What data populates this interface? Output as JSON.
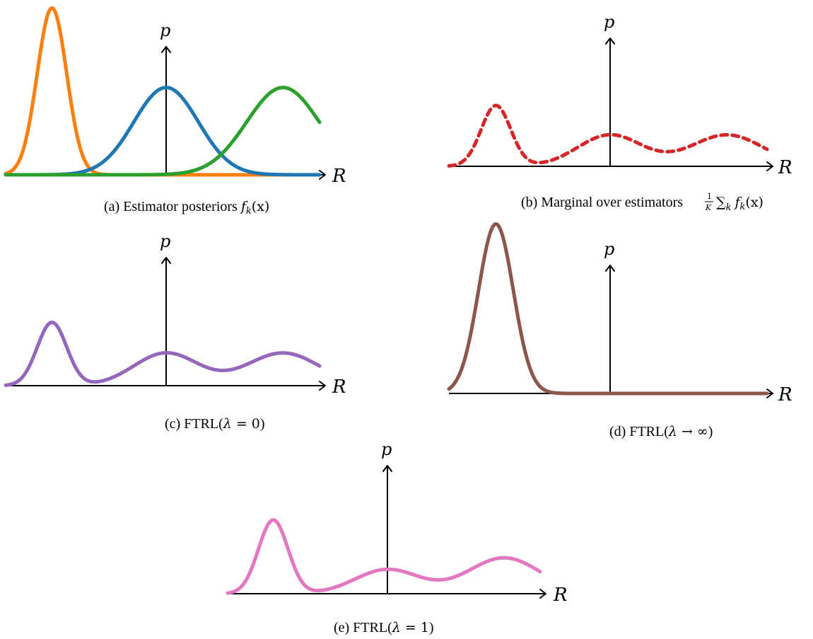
{
  "figure": {
    "panels": [
      {
        "id": "a",
        "y_label": "p",
        "x_label": "R",
        "caption": {
          "prefix": "(a) Estimator posteriors ",
          "math_f": "f",
          "math_k": "k",
          "math_arg": "(x)"
        },
        "curves": [
          {
            "name": "",
            "color": "#ff7f0e",
            "style": "solid",
            "type": "gaussian",
            "mu": -0.85,
            "sigma": 0.11,
            "peak": 1.72
          },
          {
            "name": "",
            "color": "#1f77b4",
            "style": "solid",
            "type": "gaussian",
            "mu": 0.0,
            "sigma": 0.24,
            "peak": 0.9
          },
          {
            "name": "",
            "color": "#2ca02c",
            "style": "solid",
            "type": "gaussian",
            "mu": 0.87,
            "sigma": 0.27,
            "peak": 0.9
          }
        ]
      },
      {
        "id": "b",
        "y_label": "p",
        "x_label": "R",
        "caption": {
          "prefix": "(b) Marginal over estimators ",
          "frac_num": "1",
          "frac_den": "K",
          "sum": "∑",
          "sum_sub": "k",
          "math_f": "f",
          "math_k": "k",
          "math_arg": "(x)"
        },
        "curves": [
          {
            "name": "",
            "color": "#d62728",
            "style": "dashed",
            "type": "mixture",
            "components": [
              {
                "mu": -0.85,
                "sigma": 0.11,
                "peak": 0.58
              },
              {
                "mu": 0.0,
                "sigma": 0.24,
                "peak": 0.3
              },
              {
                "mu": 0.87,
                "sigma": 0.27,
                "peak": 0.3
              }
            ]
          }
        ]
      },
      {
        "id": "c",
        "y_label": "p",
        "x_label": "R",
        "caption": {
          "prefix": "(c) FTRL(",
          "lambda": "λ",
          "relation": " = 0",
          "suffix": ")"
        },
        "curves": [
          {
            "name": "",
            "color": "#9467bd",
            "style": "solid",
            "type": "mixture",
            "components": [
              {
                "mu": -0.85,
                "sigma": 0.11,
                "peak": 0.58
              },
              {
                "mu": 0.0,
                "sigma": 0.24,
                "peak": 0.3
              },
              {
                "mu": 0.87,
                "sigma": 0.27,
                "peak": 0.3
              }
            ]
          }
        ]
      },
      {
        "id": "d",
        "y_label": "p",
        "x_label": "R",
        "caption": {
          "prefix": "(d) FTRL(",
          "lambda": "λ",
          "relation": " → ∞",
          "suffix": ")"
        },
        "curves": [
          {
            "name": "",
            "color": "#8c564b",
            "style": "solid",
            "type": "gaussian",
            "mu": -0.85,
            "sigma": 0.13,
            "peak": 1.64
          }
        ]
      },
      {
        "id": "e",
        "y_label": "p",
        "x_label": "R",
        "caption": {
          "prefix": "(e) FTRL(",
          "lambda": "λ",
          "relation": " = 1",
          "suffix": ")"
        },
        "curves": [
          {
            "name": "",
            "color": "#e377c2",
            "style": "solid",
            "type": "mixture",
            "components": [
              {
                "mu": -0.85,
                "sigma": 0.11,
                "peak": 0.76
              },
              {
                "mu": 0.0,
                "sigma": 0.24,
                "peak": 0.25
              },
              {
                "mu": 0.87,
                "sigma": 0.27,
                "peak": 0.37
              }
            ]
          }
        ]
      }
    ]
  }
}
